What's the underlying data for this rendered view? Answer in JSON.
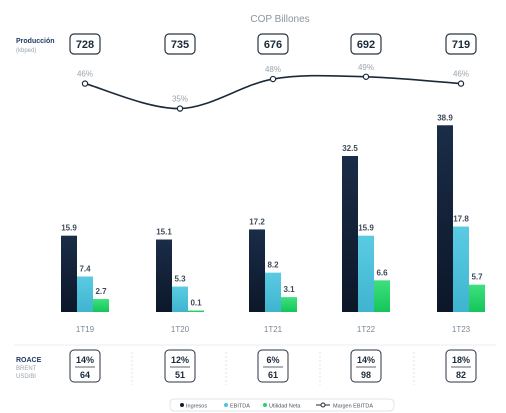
{
  "header": {
    "currency_label": "COP Billones"
  },
  "production": {
    "label": "Producción",
    "unit": "(kbped)",
    "values": [
      "728",
      "735",
      "676",
      "692",
      "719"
    ]
  },
  "roace_section": {
    "label": "ROACE",
    "sub1": "BRENT",
    "sub2": "USD/Bl",
    "roace": [
      "14%",
      "12%",
      "6%",
      "14%",
      "18%"
    ],
    "brent": [
      "64",
      "51",
      "61",
      "98",
      "82"
    ]
  },
  "colors": {
    "ingresos": "#0f1d33",
    "ebitda": "#4fc3dc",
    "utilidad": "#22d66a",
    "margin_line": "#1b2a3a"
  },
  "legend": {
    "ingresos": "Ingresos",
    "ebitda": "EBITDA",
    "utilidad": "Utilidad Neta",
    "margen": "Margen EBITDA"
  },
  "chart_data": {
    "type": "bar",
    "categories": [
      "1T19",
      "1T20",
      "1T21",
      "1T22",
      "1T23"
    ],
    "series": [
      {
        "name": "Ingresos",
        "values": [
          15.9,
          15.1,
          17.2,
          32.5,
          38.9
        ]
      },
      {
        "name": "EBITDA",
        "values": [
          7.4,
          5.3,
          8.2,
          15.9,
          17.8
        ]
      },
      {
        "name": "Utilidad Neta",
        "values": [
          2.7,
          0.1,
          3.1,
          6.6,
          5.7
        ]
      }
    ],
    "line_series": {
      "name": "Margen EBITDA",
      "values": [
        46,
        35,
        48,
        49,
        46
      ],
      "labels": [
        "46%",
        "35%",
        "48%",
        "49%",
        "46%"
      ]
    },
    "value_labels": [
      [
        "15.9",
        "15.1",
        "17.2",
        "32.5",
        "38.9"
      ],
      [
        "7.4",
        "5.3",
        "8.2",
        "15.9",
        "17.8"
      ],
      [
        "2.7",
        "0.1",
        "3.1",
        "6.6",
        "5.7"
      ]
    ],
    "title": "COP Billones",
    "xlabel": "",
    "ylabel": "",
    "ylim": [
      0,
      40
    ],
    "legend_position": "bottom-right"
  }
}
